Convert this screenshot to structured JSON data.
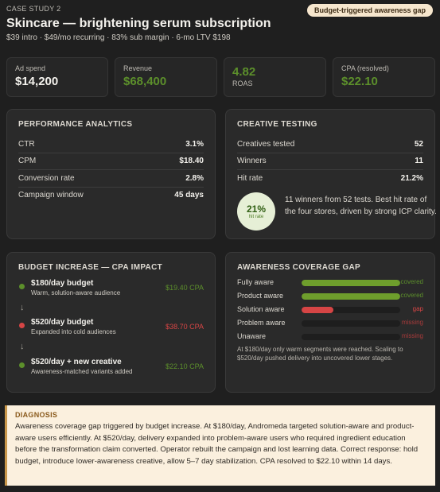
{
  "header": {
    "case_label": "CASE STUDY 2",
    "title": "Skincare — brightening serum subscription",
    "subtitle": "$39 intro · $49/mo recurring · 83% sub margin · 6-mo LTV $198",
    "tag": "Budget-triggered awareness gap"
  },
  "kpis": {
    "ad_spend": {
      "label": "Ad spend",
      "value": "$14,200"
    },
    "revenue": {
      "label": "Revenue",
      "value": "$68,400"
    },
    "roas": {
      "value": "4.82",
      "label": "ROAS"
    },
    "cpa": {
      "label": "CPA (resolved)",
      "value": "$22.10"
    }
  },
  "performance": {
    "title": "PERFORMANCE ANALYTICS",
    "rows": [
      {
        "label": "CTR",
        "value": "3.1%"
      },
      {
        "label": "CPM",
        "value": "$18.40"
      },
      {
        "label": "Conversion rate",
        "value": "2.8%"
      },
      {
        "label": "Campaign window",
        "value": "45 days"
      }
    ]
  },
  "creative": {
    "title": "CREATIVE TESTING",
    "rows": [
      {
        "label": "Creatives tested",
        "value": "52"
      },
      {
        "label": "Winners",
        "value": "11"
      },
      {
        "label": "Hit rate",
        "value": "21.2%"
      }
    ],
    "hit_pct": "21%",
    "hit_caption": "hit rate",
    "summary": "11 winners from 52 tests. Best hit rate of the four stores, driven by strong ICP clarity."
  },
  "budget": {
    "title": "BUDGET INCREASE — CPA IMPACT",
    "arrow": "↓",
    "steps": [
      {
        "name": "$180/day budget",
        "desc": "Warm, solution-aware audience",
        "cpa": "$19.40 CPA",
        "color": "#5c8f2b"
      },
      {
        "name": "$520/day budget",
        "desc": "Expanded into cold audiences",
        "cpa": "$38.70 CPA",
        "color": "#d64545"
      },
      {
        "name": "$520/day + new creative",
        "desc": "Awareness-matched variants added",
        "cpa": "$22.10 CPA",
        "color": "#5c8f2b"
      }
    ]
  },
  "awareness": {
    "title": "AWARENESS COVERAGE GAP",
    "rows": [
      {
        "label": "Fully aware",
        "status": "covered",
        "level": 1.0,
        "color": "#6e9e2c",
        "status_color": "#5c8f2b"
      },
      {
        "label": "Product aware",
        "status": "covered",
        "level": 1.0,
        "color": "#6e9e2c",
        "status_color": "#5c8f2b"
      },
      {
        "label": "Solution aware",
        "status": "gap",
        "level": 0.32,
        "color": "#d64545",
        "status_color": "#d64545"
      },
      {
        "label": "Problem aware",
        "status": "missing",
        "level": 0,
        "color": "#d64545",
        "status_color": "#a83a3a"
      },
      {
        "label": "Unaware",
        "status": "missing",
        "level": 0,
        "color": "#d64545",
        "status_color": "#a83a3a"
      }
    ],
    "note": "At $180/day only warm segments were reached. Scaling to $520/day pushed delivery into uncovered lower stages."
  },
  "diagnosis": {
    "title": "DIAGNOSIS",
    "text": "Awareness coverage gap triggered by budget increase. At $180/day, Andromeda targeted solution-aware and product-aware users efficiently. At $520/day, delivery expanded into problem-aware users who required ingredient education before the transformation claim converted. Operator rebuilt the campaign and lost learning data. Correct response: hold budget, introduce lower-awareness creative, allow 5–7 day stabilization. CPA resolved to $22.10 within 14 days."
  }
}
